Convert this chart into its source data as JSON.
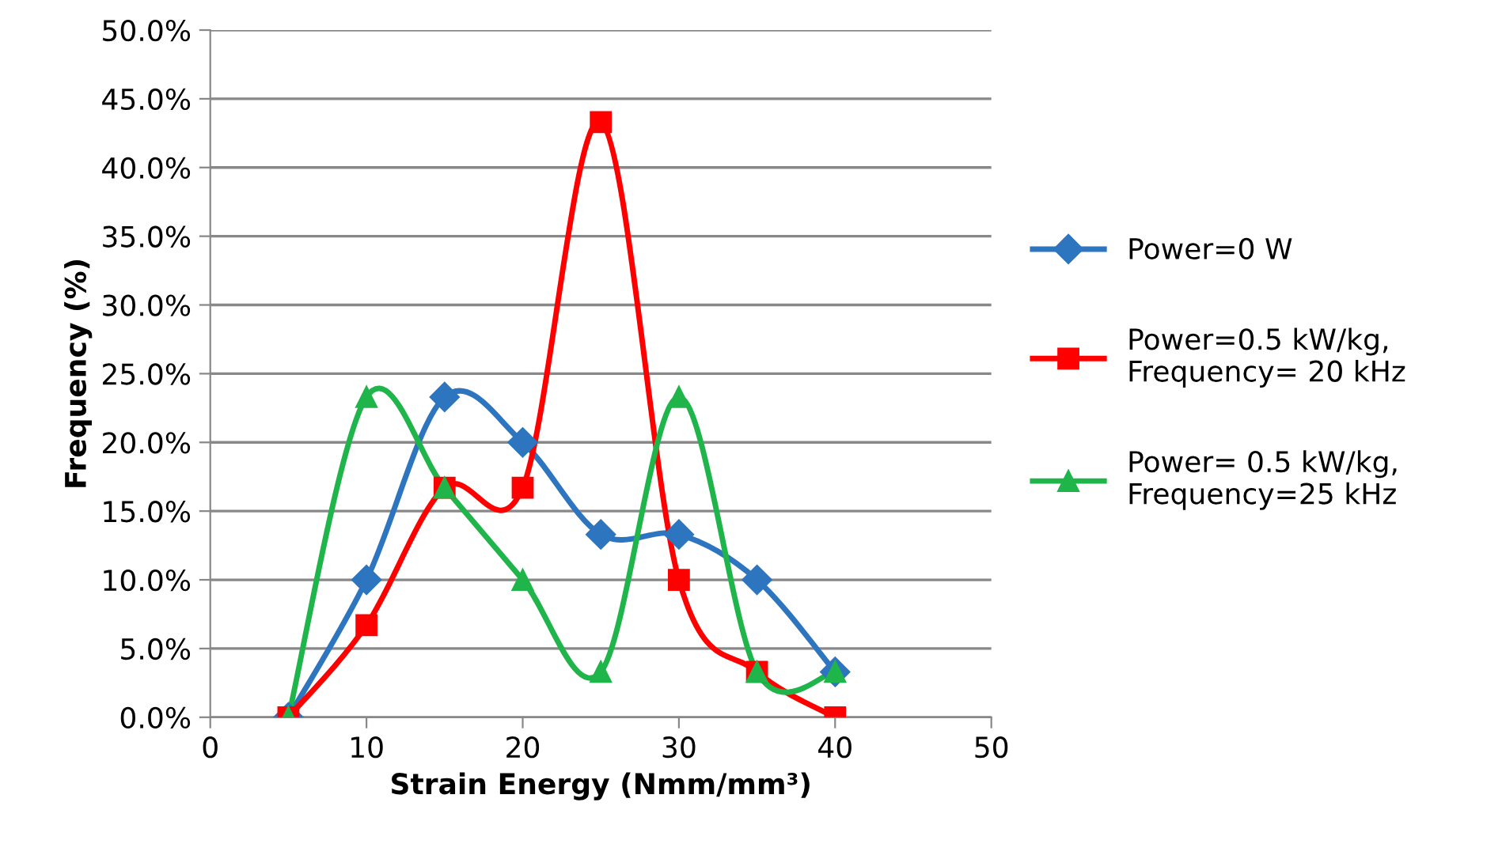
{
  "chart_data": {
    "type": "line",
    "xlabel": "Strain Energy (Nmm/mm³)",
    "ylabel": "Frequency (%)",
    "x": [
      5,
      10,
      15,
      20,
      25,
      30,
      35,
      40
    ],
    "xlim": [
      0,
      50
    ],
    "xticks": [
      0,
      10,
      20,
      30,
      40,
      50
    ],
    "ylim": [
      0,
      50
    ],
    "yticks": [
      {
        "value": 0,
        "label": "0.0%"
      },
      {
        "value": 5,
        "label": "5.0%"
      },
      {
        "value": 10,
        "label": "10.0%"
      },
      {
        "value": 15,
        "label": "15.0%"
      },
      {
        "value": 20,
        "label": "20.0%"
      },
      {
        "value": 25,
        "label": "25.0%"
      },
      {
        "value": 30,
        "label": "30.0%"
      },
      {
        "value": 35,
        "label": "35.0%"
      },
      {
        "value": 40,
        "label": "40.0%"
      },
      {
        "value": 45,
        "label": "45.0%"
      },
      {
        "value": 50,
        "label": "50.0%"
      }
    ],
    "grid": "y",
    "legend": "right",
    "series": [
      {
        "name": "Power=0 W",
        "color": "#2e75c0",
        "marker": "diamond",
        "values": [
          0,
          10,
          23.3,
          20,
          13.3,
          13.3,
          10,
          3.3
        ]
      },
      {
        "name": "Power=0.5 kW/kg,\nFrequency= 20 kHz",
        "color": "#ff0000",
        "marker": "square",
        "values": [
          0,
          6.7,
          16.7,
          16.7,
          43.3,
          10,
          3.3,
          0
        ]
      },
      {
        "name": "Power= 0.5 kW/kg,\nFrequency=25 kHz",
        "color": "#1fb54a",
        "marker": "triangle",
        "values": [
          0,
          23.3,
          16.7,
          10,
          3.3,
          23.3,
          3.3,
          3.3
        ]
      }
    ]
  }
}
